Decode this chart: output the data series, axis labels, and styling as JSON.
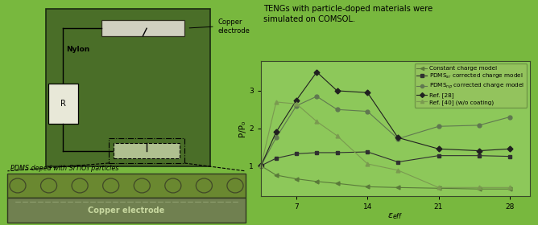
{
  "background_color": "#78b83e",
  "title_text": "TENGs with particle-doped materials were\nsimulated on COMSOL.",
  "xlabel": "$\\varepsilon_{eff}$",
  "ylabel": "P/P₀",
  "xlim": [
    3.5,
    30
  ],
  "ylim": [
    0.2,
    3.8
  ],
  "yticks": [
    1,
    2,
    3
  ],
  "xticks": [
    7,
    14,
    21,
    28
  ],
  "plot_bg": "#8dc85a",
  "series": [
    {
      "label": "Constant charge model",
      "marker": "<",
      "color": "#5a7a3a",
      "x": [
        3.5,
        5,
        7,
        9,
        11,
        14,
        17,
        21,
        25,
        28
      ],
      "y": [
        1.0,
        0.75,
        0.65,
        0.58,
        0.53,
        0.44,
        0.42,
        0.4,
        0.38,
        0.38
      ]
    },
    {
      "label": "PDMS$_{sr}$ corrected charge model",
      "marker": "s",
      "color": "#303030",
      "x": [
        3.5,
        5,
        7,
        9,
        11,
        14,
        17,
        21,
        25,
        28
      ],
      "y": [
        1.0,
        1.2,
        1.32,
        1.35,
        1.35,
        1.37,
        1.1,
        1.27,
        1.27,
        1.25
      ]
    },
    {
      "label": "PDMS$_{np}$ corrected charge model",
      "marker": "o",
      "color": "#607850",
      "x": [
        3.5,
        5,
        7,
        9,
        11,
        14,
        17,
        21,
        25,
        28
      ],
      "y": [
        1.0,
        1.75,
        2.6,
        2.85,
        2.5,
        2.45,
        1.72,
        2.05,
        2.08,
        2.3
      ]
    },
    {
      "label": "Ref. [28]",
      "marker": "D",
      "color": "#202020",
      "x": [
        3.5,
        5,
        7,
        9,
        11,
        14,
        17,
        21,
        25,
        28
      ],
      "y": [
        1.0,
        1.9,
        2.75,
        3.5,
        3.0,
        2.95,
        1.75,
        1.45,
        1.4,
        1.45
      ]
    },
    {
      "label": "Ref. [40] (w/o coating)",
      "marker": "^",
      "color": "#7a9a50",
      "x": [
        3.5,
        5,
        7,
        9,
        11,
        14,
        17,
        21,
        25,
        28
      ],
      "y": [
        1.0,
        2.7,
        2.65,
        2.18,
        1.8,
        1.05,
        0.88,
        0.42,
        0.42,
        0.42
      ]
    }
  ],
  "circuit": {
    "box_color": "#4a7028",
    "box_gradient_center": "#6a9040",
    "copper_bar_color": "#d0d0c0",
    "resistor_color": "#e8e8d8",
    "device_color": "#b0c090",
    "pdms_layer_color": "#6a8830",
    "pdms_circle_color": "#506820",
    "copper_bot_color": "#708050",
    "copper_bot_text_color": "#d0d8b0",
    "nylon_label": "Nylon",
    "R_label": "R",
    "copper_top_label": "Copper\nelectrode",
    "pdms_label": "PDMS doped with SrTiO₃ particles",
    "copper_bottom_label": "Copper electrode"
  }
}
